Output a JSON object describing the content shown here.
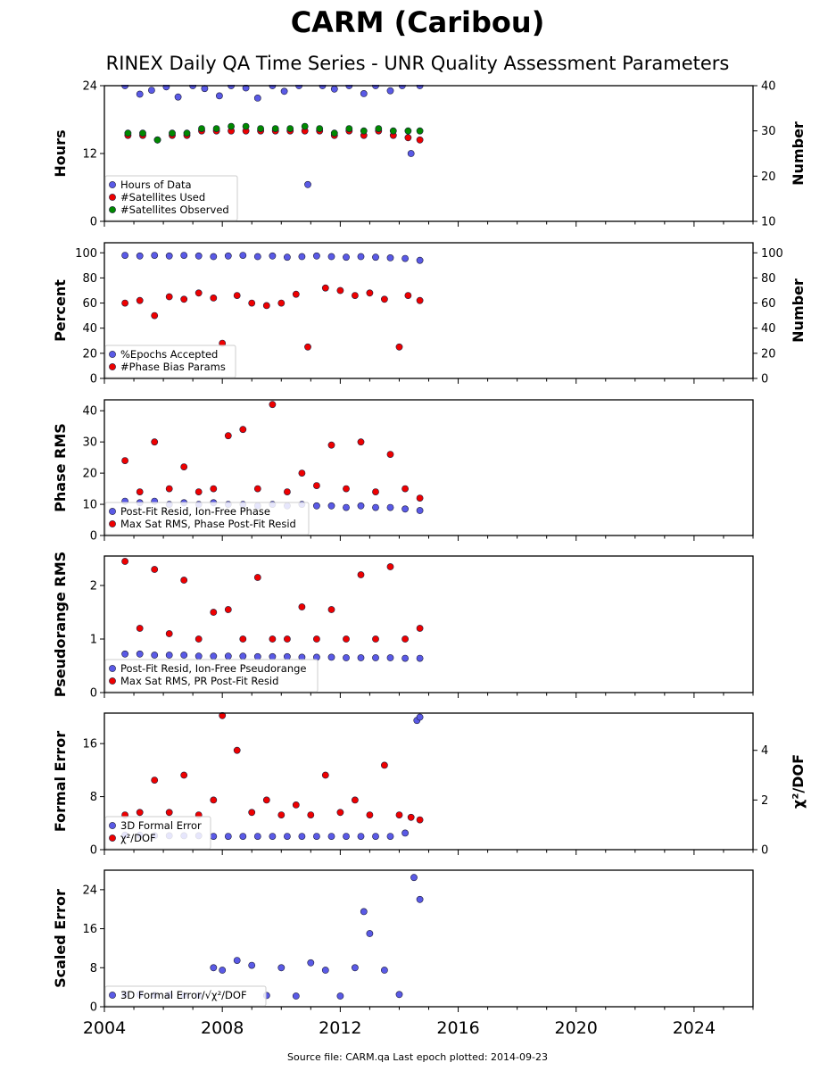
{
  "title": "CARM (Caribou)",
  "subtitle": "RINEX Daily QA Time Series - UNR Quality Assessment Parameters",
  "footer": "Source file: CARM.qa Last epoch plotted: 2014-09-23",
  "colors": {
    "blue": "#5a5ae6",
    "red": "#ee0000",
    "green": "#008800",
    "edge": "#1a1a3a"
  },
  "chart_data": [
    {
      "type": "scatter",
      "ylabel": "Hours",
      "ylabel2": "Number",
      "xlim": [
        2004,
        2026
      ],
      "ylim": [
        0,
        24
      ],
      "ylim2": [
        10,
        40
      ],
      "yticks": [
        "0",
        "12",
        "24"
      ],
      "yticks2": [
        "10",
        "20",
        "30",
        "40"
      ],
      "legend": "lower-left",
      "series": [
        {
          "name": "Hours of Data",
          "color": "blue",
          "axis": "left",
          "x": [
            2004.7,
            2005.2,
            2005.6,
            2006.1,
            2006.5,
            2007.0,
            2007.4,
            2007.9,
            2008.3,
            2008.8,
            2009.2,
            2009.7,
            2010.1,
            2010.6,
            2010.9,
            2011.4,
            2011.8,
            2012.3,
            2012.8,
            2013.2,
            2013.7,
            2014.1,
            2014.4,
            2014.7
          ],
          "y": [
            24.0,
            22.5,
            23.2,
            23.8,
            22.0,
            24.0,
            23.5,
            22.2,
            24.0,
            23.6,
            21.8,
            24.0,
            23.0,
            24.0,
            6.5,
            24.0,
            23.4,
            24.0,
            22.6,
            24.0,
            23.1,
            24.0,
            12.0,
            24.0
          ]
        },
        {
          "name": "#Satellites Used",
          "color": "red",
          "axis": "right",
          "x": [
            2004.8,
            2005.3,
            2005.8,
            2006.3,
            2006.8,
            2007.3,
            2007.8,
            2008.3,
            2008.8,
            2009.3,
            2009.8,
            2010.3,
            2010.8,
            2011.3,
            2011.8,
            2012.3,
            2012.8,
            2013.3,
            2013.8,
            2014.3,
            2014.7
          ],
          "y": [
            29.0,
            29.0,
            28.0,
            29.0,
            29.0,
            30.0,
            30.0,
            30.0,
            30.0,
            30.0,
            30.0,
            30.0,
            30.0,
            30.0,
            29.0,
            30.0,
            29.0,
            30.0,
            29.0,
            28.5,
            28.0
          ]
        },
        {
          "name": "#Satellites Observed",
          "color": "green",
          "axis": "right",
          "x": [
            2004.8,
            2005.3,
            2005.8,
            2006.3,
            2006.8,
            2007.3,
            2007.8,
            2008.3,
            2008.8,
            2009.3,
            2009.8,
            2010.3,
            2010.8,
            2011.3,
            2011.8,
            2012.3,
            2012.8,
            2013.3,
            2013.8,
            2014.3,
            2014.7
          ],
          "y": [
            29.5,
            29.5,
            28.0,
            29.5,
            29.5,
            30.5,
            30.5,
            31.0,
            31.0,
            30.5,
            30.5,
            30.5,
            31.0,
            30.5,
            29.5,
            30.5,
            30.0,
            30.5,
            30.0,
            30.0,
            30.0
          ]
        }
      ]
    },
    {
      "type": "scatter",
      "ylabel": "Percent",
      "ylabel2": "Number",
      "xlim": [
        2004,
        2026
      ],
      "ylim": [
        0,
        108
      ],
      "ylim2": [
        0,
        108
      ],
      "yticks": [
        "0",
        "20",
        "40",
        "60",
        "80",
        "100"
      ],
      "yticks2": [
        "0",
        "20",
        "40",
        "60",
        "80",
        "100"
      ],
      "legend": "lower-left",
      "series": [
        {
          "name": "%Epochs Accepted",
          "color": "blue",
          "axis": "left",
          "x": [
            2004.7,
            2005.2,
            2005.7,
            2006.2,
            2006.7,
            2007.2,
            2007.7,
            2008.2,
            2008.7,
            2009.2,
            2009.7,
            2010.2,
            2010.7,
            2011.2,
            2011.7,
            2012.2,
            2012.7,
            2013.2,
            2013.7,
            2014.2,
            2014.7
          ],
          "y": [
            98.0,
            97.5,
            98.0,
            97.5,
            98.0,
            97.5,
            97.0,
            97.5,
            98.0,
            97.0,
            97.5,
            96.5,
            97.0,
            97.5,
            97.0,
            96.5,
            97.0,
            96.5,
            96.0,
            95.5,
            94.0
          ]
        },
        {
          "name": "#Phase Bias Params",
          "color": "red",
          "axis": "right",
          "x": [
            2004.7,
            2005.2,
            2005.7,
            2006.2,
            2006.7,
            2007.2,
            2007.7,
            2008.0,
            2008.5,
            2009.0,
            2009.5,
            2010.0,
            2010.5,
            2010.9,
            2011.5,
            2012.0,
            2012.5,
            2013.0,
            2013.5,
            2014.0,
            2014.3,
            2014.7
          ],
          "y": [
            60.0,
            62.0,
            50.0,
            65.0,
            63.0,
            68.0,
            64.0,
            28.0,
            66.0,
            60.0,
            58.0,
            60.0,
            67.0,
            25.0,
            72.0,
            70.0,
            66.0,
            68.0,
            63.0,
            25.0,
            66.0,
            62.0
          ]
        }
      ]
    },
    {
      "type": "scatter",
      "ylabel": "Phase RMS",
      "xlim": [
        2004,
        2026
      ],
      "ylim": [
        0,
        43.5
      ],
      "yticks": [
        "0",
        "10",
        "20",
        "30",
        "40"
      ],
      "legend": "lower-left",
      "series": [
        {
          "name": "Post-Fit Resid, Ion-Free Phase",
          "color": "blue",
          "axis": "left",
          "x": [
            2004.7,
            2005.2,
            2005.7,
            2006.2,
            2006.7,
            2007.2,
            2007.7,
            2008.2,
            2008.7,
            2009.2,
            2009.7,
            2010.2,
            2010.7,
            2011.2,
            2011.7,
            2012.2,
            2012.7,
            2013.2,
            2013.7,
            2014.2,
            2014.7
          ],
          "y": [
            11.0,
            10.5,
            11.0,
            10.0,
            10.5,
            10.0,
            10.5,
            10.0,
            10.0,
            9.5,
            10.0,
            9.5,
            10.0,
            9.5,
            9.5,
            9.0,
            9.5,
            9.0,
            9.0,
            8.5,
            8.0
          ]
        },
        {
          "name": "Max Sat RMS, Phase Post-Fit Resid",
          "color": "red",
          "axis": "left",
          "x": [
            2004.7,
            2005.2,
            2005.7,
            2006.2,
            2006.7,
            2007.2,
            2007.7,
            2008.2,
            2008.7,
            2009.2,
            2009.7,
            2010.2,
            2010.7,
            2011.2,
            2011.7,
            2012.2,
            2012.7,
            2013.2,
            2013.7,
            2014.2,
            2014.7
          ],
          "y": [
            24.0,
            14.0,
            30.0,
            15.0,
            22.0,
            14.0,
            15.0,
            32.0,
            34.0,
            15.0,
            42.0,
            14.0,
            20.0,
            16.0,
            29.0,
            15.0,
            30.0,
            14.0,
            26.0,
            15.0,
            12.0
          ]
        }
      ]
    },
    {
      "type": "scatter",
      "ylabel": "Pseudorange RMS",
      "xlim": [
        2004,
        2026
      ],
      "ylim": [
        0,
        2.55
      ],
      "yticks": [
        "0",
        "1",
        "2"
      ],
      "legend": "lower-left",
      "series": [
        {
          "name": "Post-Fit Resid, Ion-Free Pseudorange",
          "color": "blue",
          "axis": "left",
          "x": [
            2004.7,
            2005.2,
            2005.7,
            2006.2,
            2006.7,
            2007.2,
            2007.7,
            2008.2,
            2008.7,
            2009.2,
            2009.7,
            2010.2,
            2010.7,
            2011.2,
            2011.7,
            2012.2,
            2012.7,
            2013.2,
            2013.7,
            2014.2,
            2014.7
          ],
          "y": [
            0.72,
            0.72,
            0.7,
            0.7,
            0.7,
            0.68,
            0.68,
            0.68,
            0.68,
            0.67,
            0.67,
            0.67,
            0.66,
            0.66,
            0.66,
            0.65,
            0.65,
            0.65,
            0.65,
            0.64,
            0.64
          ]
        },
        {
          "name": "Max Sat RMS, PR Post-Fit Resid",
          "color": "red",
          "axis": "left",
          "x": [
            2004.7,
            2005.2,
            2005.7,
            2006.2,
            2006.7,
            2007.2,
            2007.7,
            2008.2,
            2008.7,
            2009.2,
            2009.7,
            2010.2,
            2010.7,
            2011.2,
            2011.7,
            2012.2,
            2012.7,
            2013.2,
            2013.7,
            2014.2,
            2014.7
          ],
          "y": [
            2.45,
            1.2,
            2.3,
            1.1,
            2.1,
            1.0,
            1.5,
            1.55,
            1.0,
            2.15,
            1.0,
            1.0,
            1.6,
            1.0,
            1.55,
            1.0,
            2.2,
            1.0,
            2.35,
            1.0,
            1.2
          ]
        }
      ]
    },
    {
      "type": "scatter",
      "ylabel": "Formal Error",
      "ylabel2": "χ²/DOF",
      "xlim": [
        2004,
        2026
      ],
      "ylim": [
        0,
        20.6
      ],
      "ylim2": [
        0,
        5.5
      ],
      "yticks": [
        "0",
        "8",
        "16"
      ],
      "yticks2": [
        "0",
        "2",
        "4"
      ],
      "legend": "lower-left",
      "series": [
        {
          "name": "3D Formal Error",
          "color": "blue",
          "axis": "left",
          "x": [
            2004.7,
            2005.2,
            2005.7,
            2006.2,
            2006.7,
            2007.2,
            2007.7,
            2008.2,
            2008.7,
            2009.2,
            2009.7,
            2010.2,
            2010.7,
            2011.2,
            2011.7,
            2012.2,
            2012.7,
            2013.2,
            2013.7,
            2014.2,
            2014.6,
            2014.7
          ],
          "y": [
            2.2,
            2.2,
            2.1,
            2.1,
            2.1,
            2.1,
            2.0,
            2.0,
            2.0,
            2.0,
            2.0,
            2.0,
            2.0,
            2.0,
            2.0,
            2.0,
            2.0,
            2.0,
            2.0,
            2.5,
            19.5,
            20.0
          ]
        },
        {
          "name": "χ²/DOF",
          "color": "red",
          "axis": "right",
          "x": [
            2004.7,
            2005.2,
            2005.7,
            2006.2,
            2006.7,
            2007.2,
            2007.7,
            2008.0,
            2008.5,
            2009.0,
            2009.5,
            2010.0,
            2010.5,
            2011.0,
            2011.5,
            2012.0,
            2012.5,
            2013.0,
            2013.5,
            2014.0,
            2014.4,
            2014.7
          ],
          "y": [
            1.4,
            1.5,
            2.8,
            1.5,
            3.0,
            1.4,
            2.0,
            5.4,
            4.0,
            1.5,
            2.0,
            1.4,
            1.8,
            1.4,
            3.0,
            1.5,
            2.0,
            1.4,
            3.4,
            1.4,
            1.3,
            1.2
          ]
        }
      ]
    },
    {
      "type": "scatter",
      "ylabel": "Scaled Error",
      "xlim": [
        2004,
        2026
      ],
      "xticks": [
        "2004",
        "2008",
        "2012",
        "2016",
        "2020",
        "2024"
      ],
      "ylim": [
        0,
        28
      ],
      "yticks": [
        "0",
        "8",
        "16",
        "24"
      ],
      "legend": "lower-left",
      "series": [
        {
          "name": "3D Formal Error/√χ²/DOF",
          "color": "blue",
          "axis": "left",
          "x": [
            2004.7,
            2005.2,
            2005.7,
            2006.2,
            2006.7,
            2007.2,
            2007.7,
            2008.0,
            2008.5,
            2009.0,
            2009.5,
            2010.0,
            2010.5,
            2011.0,
            2011.5,
            2012.0,
            2012.5,
            2012.8,
            2013.0,
            2013.5,
            2014.0,
            2014.5,
            2014.7
          ],
          "y": [
            2.5,
            2.5,
            2.4,
            2.4,
            2.3,
            2.3,
            8.0,
            7.5,
            9.5,
            8.5,
            2.3,
            8.0,
            2.2,
            9.0,
            7.5,
            2.2,
            8.0,
            19.5,
            15.0,
            7.5,
            2.5,
            26.5,
            22.0
          ]
        }
      ]
    }
  ]
}
